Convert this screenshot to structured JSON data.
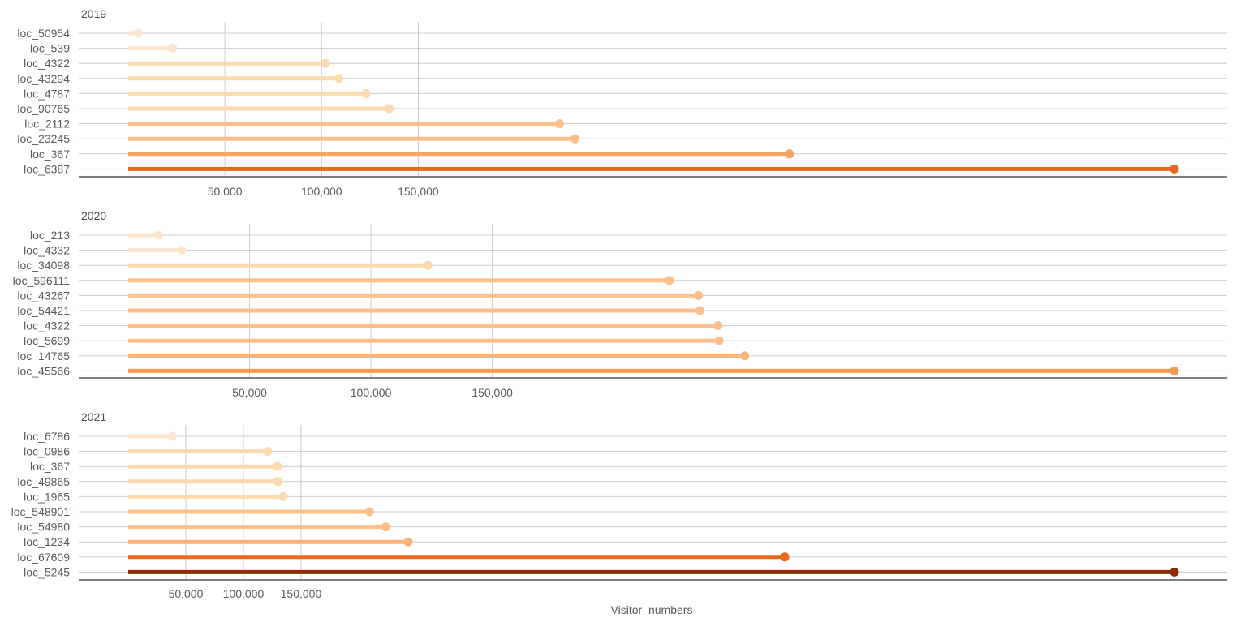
{
  "chart_data": {
    "type": "lollipop",
    "xlabel": "Visitor_numbers",
    "grid": true,
    "panels": [
      {
        "title": "2019",
        "ticks": [
          50000,
          100000,
          150000
        ],
        "tick_labels": [
          "50,000",
          "100,000",
          "150,000"
        ],
        "categories": [
          "loc_50954",
          "loc_539",
          "loc_4322",
          "loc_43294",
          "loc_4787",
          "loc_90765",
          "loc_2112",
          "loc_23245",
          "loc_367",
          "loc_6387"
        ],
        "values": [
          5000,
          23000,
          102000,
          109000,
          123000,
          135000,
          223000,
          231000,
          342000,
          541000
        ],
        "colors": [
          "#fee6ce",
          "#fee6ce",
          "#fdd9b0",
          "#fdd9b0",
          "#fdd9b0",
          "#fdd9b0",
          "#fdc08c",
          "#fdc08c",
          "#f5a462",
          "#e8681e"
        ]
      },
      {
        "title": "2020",
        "ticks": [
          50000,
          100000,
          150000
        ],
        "tick_labels": [
          "50,000",
          "100,000",
          "150,000"
        ],
        "categories": [
          "loc_213",
          "loc_4332",
          "loc_34098",
          "loc_596111",
          "loc_43267",
          "loc_54421",
          "loc_4322",
          "loc_5699",
          "loc_14765",
          "loc_45566"
        ],
        "values": [
          12500,
          22000,
          123500,
          223000,
          235000,
          235500,
          243000,
          243500,
          254000,
          431000
        ],
        "colors": [
          "#fee6ce",
          "#fee6ce",
          "#fdd9b0",
          "#fdc08c",
          "#fdc08c",
          "#fdc08c",
          "#fdc08c",
          "#fdc08c",
          "#fbb57b",
          "#f59a52"
        ]
      },
      {
        "title": "2021",
        "ticks": [
          50000,
          100000,
          150000
        ],
        "tick_labels": [
          "50,000",
          "100,000",
          "150,000"
        ],
        "categories": [
          "loc_6786",
          "loc_0986",
          "loc_367",
          "loc_49865",
          "loc_1965",
          "loc_548901",
          "loc_54980",
          "loc_1234",
          "loc_67609",
          "loc_5245"
        ],
        "values": [
          38500,
          121000,
          129500,
          130000,
          134500,
          209500,
          223500,
          243000,
          570000,
          908000
        ],
        "colors": [
          "#fee6ce",
          "#fdd9b0",
          "#fdd9b0",
          "#fdd9b0",
          "#fdd9b0",
          "#fdc08c",
          "#fdc08c",
          "#f9b27a",
          "#e8681e",
          "#8c2d04"
        ]
      }
    ]
  }
}
